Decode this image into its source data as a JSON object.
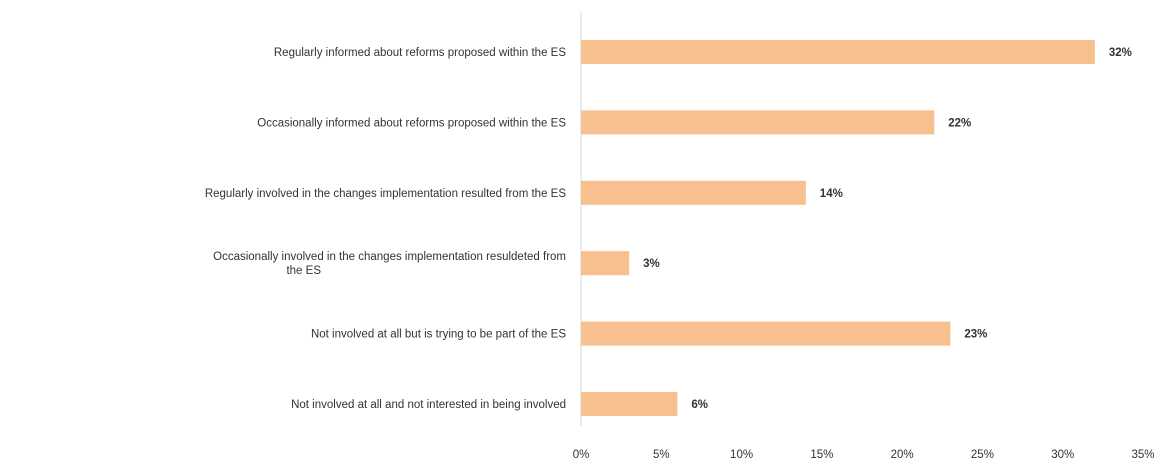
{
  "chart_data": {
    "type": "bar",
    "orientation": "horizontal",
    "categories": [
      [
        "Regularly informed about reforms proposed within the ES"
      ],
      [
        "Occasionally informed about reforms proposed within the ES"
      ],
      [
        "Regularly involved in the changes implementation resulted from the ES"
      ],
      [
        "Occasionally involved in the changes implementation resuldeted from",
        "the ES"
      ],
      [
        "Not involved at all but is trying to be part of the ES"
      ],
      [
        "Not involved at all and not interested in being involved"
      ]
    ],
    "values": [
      32,
      22,
      14,
      3,
      23,
      6
    ],
    "value_labels": [
      "32%",
      "22%",
      "14%",
      "3%",
      "23%",
      "6%"
    ],
    "xlim": [
      0,
      35
    ],
    "ticks": [
      "0%",
      "5%",
      "10%",
      "15%",
      "20%",
      "25%",
      "30%",
      "35%"
    ],
    "tick_values": [
      0,
      5,
      10,
      15,
      20,
      25,
      30,
      35
    ],
    "grid": false,
    "legend": "none",
    "colors": {
      "bar": "#F9C08F",
      "axis": "#D9D9D9",
      "text": "#333333"
    }
  }
}
